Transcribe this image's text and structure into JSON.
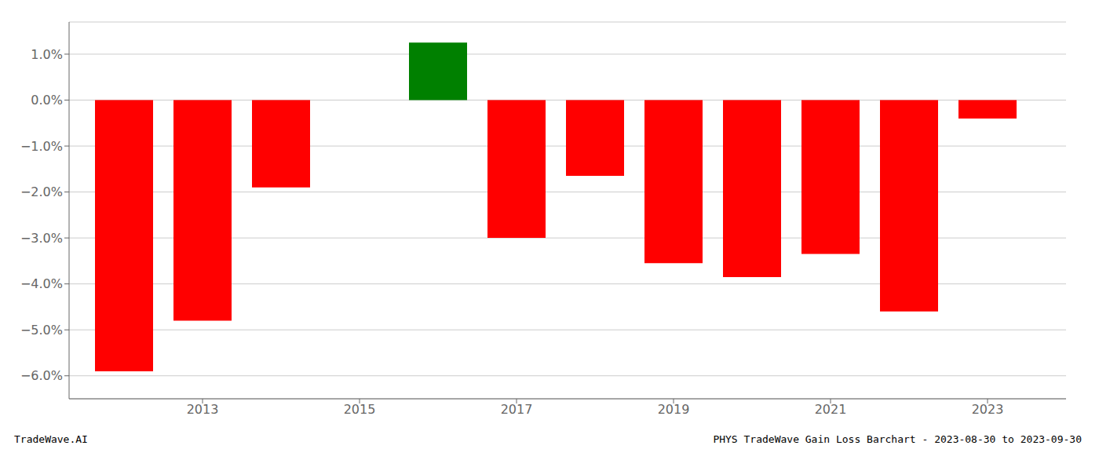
{
  "chart_data": {
    "type": "bar",
    "x": [
      2012,
      2013,
      2014,
      2016,
      2017,
      2018,
      2019,
      2020,
      2021,
      2022,
      2023
    ],
    "values": [
      -0.059,
      -0.048,
      -0.019,
      0.0125,
      -0.03,
      -0.0165,
      -0.0355,
      -0.0385,
      -0.0335,
      -0.046,
      -0.004
    ],
    "colors": [
      "#ff0000",
      "#ff0000",
      "#ff0000",
      "#008000",
      "#ff0000",
      "#ff0000",
      "#ff0000",
      "#ff0000",
      "#ff0000",
      "#ff0000",
      "#ff0000"
    ],
    "xlim": [
      2011.3,
      2024.0
    ],
    "xticks": [
      2013,
      2015,
      2017,
      2019,
      2021,
      2023
    ],
    "ylim": [
      -0.065,
      0.017
    ],
    "yticks": [
      {
        "value": -0.06,
        "label": "−6.0%"
      },
      {
        "value": -0.05,
        "label": "−5.0%"
      },
      {
        "value": -0.04,
        "label": "−4.0%"
      },
      {
        "value": -0.03,
        "label": "−3.0%"
      },
      {
        "value": -0.02,
        "label": "−2.0%"
      },
      {
        "value": -0.01,
        "label": "−1.0%"
      },
      {
        "value": 0.0,
        "label": "0.0%"
      },
      {
        "value": 0.01,
        "label": "1.0%"
      }
    ],
    "grid": true,
    "annotations": [
      "TradeWave.AI",
      "PHYS TradeWave Gain Loss Barchart - 2023-08-30 to 2023-09-30"
    ]
  }
}
